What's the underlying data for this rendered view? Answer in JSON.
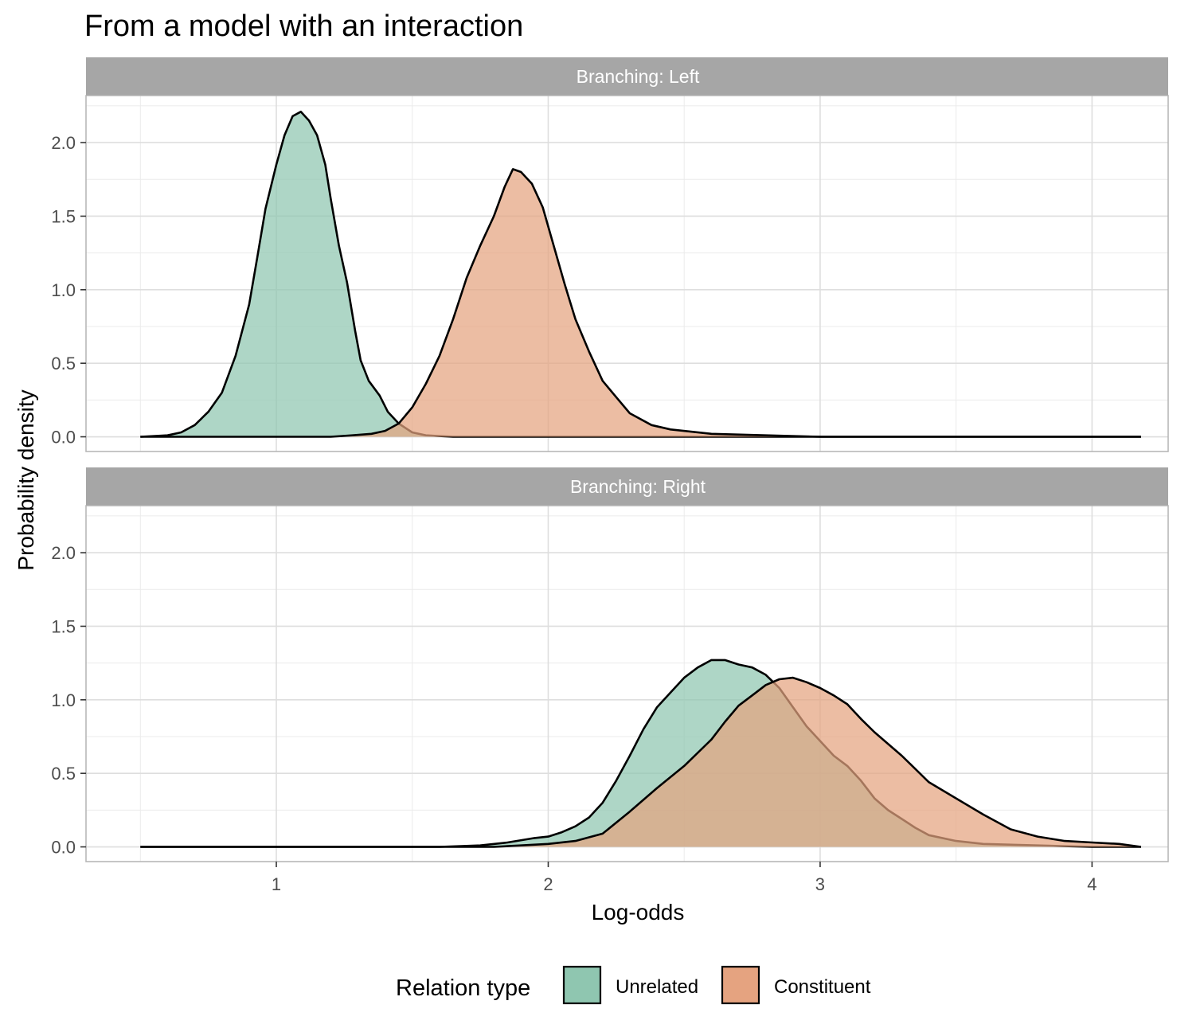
{
  "chart_data": {
    "type": "area",
    "title": "From a model with an interaction",
    "xlabel": "Log-odds",
    "ylabel": "Probability density",
    "xlim": [
      0.3,
      4.28
    ],
    "ylim": [
      -0.1,
      2.32
    ],
    "x_ticks": [
      "1",
      "2",
      "3",
      "4"
    ],
    "y_ticks": [
      "0.0",
      "0.5",
      "1.0",
      "1.5",
      "2.0"
    ],
    "grid": true,
    "legend": {
      "title": "Relation type",
      "position": "bottom",
      "entries": [
        "Unrelated",
        "Constituent"
      ]
    },
    "colors": {
      "Unrelated": "#8fc6b0",
      "Constituent": "#e5a380",
      "outline": "#000000",
      "strip": "#a6a6a6"
    },
    "panels": [
      {
        "strip": "Branching: Left",
        "series": [
          {
            "name": "Unrelated",
            "points": [
              [
                0.5,
                0.0
              ],
              [
                0.6,
                0.01
              ],
              [
                0.65,
                0.03
              ],
              [
                0.7,
                0.08
              ],
              [
                0.75,
                0.17
              ],
              [
                0.8,
                0.3
              ],
              [
                0.85,
                0.55
              ],
              [
                0.9,
                0.9
              ],
              [
                0.93,
                1.22
              ],
              [
                0.96,
                1.55
              ],
              [
                1.0,
                1.85
              ],
              [
                1.03,
                2.05
              ],
              [
                1.06,
                2.18
              ],
              [
                1.09,
                2.21
              ],
              [
                1.12,
                2.15
              ],
              [
                1.15,
                2.05
              ],
              [
                1.18,
                1.85
              ],
              [
                1.2,
                1.62
              ],
              [
                1.23,
                1.3
              ],
              [
                1.26,
                1.05
              ],
              [
                1.29,
                0.72
              ],
              [
                1.31,
                0.52
              ],
              [
                1.34,
                0.38
              ],
              [
                1.38,
                0.28
              ],
              [
                1.41,
                0.17
              ],
              [
                1.45,
                0.09
              ],
              [
                1.5,
                0.03
              ],
              [
                1.55,
                0.01
              ],
              [
                1.65,
                0.0
              ],
              [
                4.18,
                0.0
              ]
            ]
          },
          {
            "name": "Constituent",
            "points": [
              [
                0.5,
                0.0
              ],
              [
                1.2,
                0.0
              ],
              [
                1.28,
                0.01
              ],
              [
                1.35,
                0.02
              ],
              [
                1.4,
                0.04
              ],
              [
                1.45,
                0.09
              ],
              [
                1.5,
                0.2
              ],
              [
                1.55,
                0.36
              ],
              [
                1.6,
                0.55
              ],
              [
                1.65,
                0.8
              ],
              [
                1.7,
                1.08
              ],
              [
                1.75,
                1.3
              ],
              [
                1.8,
                1.5
              ],
              [
                1.84,
                1.7
              ],
              [
                1.87,
                1.82
              ],
              [
                1.9,
                1.8
              ],
              [
                1.94,
                1.72
              ],
              [
                1.98,
                1.56
              ],
              [
                2.02,
                1.3
              ],
              [
                2.06,
                1.04
              ],
              [
                2.1,
                0.8
              ],
              [
                2.15,
                0.58
              ],
              [
                2.2,
                0.38
              ],
              [
                2.25,
                0.27
              ],
              [
                2.3,
                0.16
              ],
              [
                2.38,
                0.08
              ],
              [
                2.45,
                0.05
              ],
              [
                2.6,
                0.02
              ],
              [
                2.8,
                0.01
              ],
              [
                3.0,
                0.0
              ],
              [
                4.18,
                0.0
              ]
            ]
          }
        ]
      },
      {
        "strip": "Branching: Right",
        "series": [
          {
            "name": "Unrelated",
            "points": [
              [
                0.5,
                0.0
              ],
              [
                1.6,
                0.0
              ],
              [
                1.75,
                0.01
              ],
              [
                1.85,
                0.03
              ],
              [
                1.95,
                0.06
              ],
              [
                2.0,
                0.07
              ],
              [
                2.05,
                0.1
              ],
              [
                2.1,
                0.14
              ],
              [
                2.15,
                0.2
              ],
              [
                2.2,
                0.3
              ],
              [
                2.25,
                0.45
              ],
              [
                2.3,
                0.62
              ],
              [
                2.35,
                0.8
              ],
              [
                2.4,
                0.95
              ],
              [
                2.45,
                1.05
              ],
              [
                2.5,
                1.15
              ],
              [
                2.55,
                1.22
              ],
              [
                2.6,
                1.27
              ],
              [
                2.65,
                1.27
              ],
              [
                2.7,
                1.24
              ],
              [
                2.75,
                1.22
              ],
              [
                2.8,
                1.17
              ],
              [
                2.85,
                1.08
              ],
              [
                2.9,
                0.95
              ],
              [
                2.95,
                0.82
              ],
              [
                3.0,
                0.72
              ],
              [
                3.05,
                0.62
              ],
              [
                3.1,
                0.55
              ],
              [
                3.15,
                0.45
              ],
              [
                3.2,
                0.33
              ],
              [
                3.25,
                0.25
              ],
              [
                3.3,
                0.19
              ],
              [
                3.35,
                0.13
              ],
              [
                3.4,
                0.08
              ],
              [
                3.5,
                0.04
              ],
              [
                3.6,
                0.02
              ],
              [
                3.8,
                0.01
              ],
              [
                4.0,
                0.0
              ],
              [
                4.18,
                0.0
              ]
            ]
          },
          {
            "name": "Constituent",
            "points": [
              [
                0.5,
                0.0
              ],
              [
                1.8,
                0.0
              ],
              [
                1.9,
                0.01
              ],
              [
                2.0,
                0.02
              ],
              [
                2.1,
                0.04
              ],
              [
                2.2,
                0.09
              ],
              [
                2.3,
                0.24
              ],
              [
                2.4,
                0.4
              ],
              [
                2.5,
                0.55
              ],
              [
                2.6,
                0.73
              ],
              [
                2.65,
                0.85
              ],
              [
                2.7,
                0.96
              ],
              [
                2.75,
                1.03
              ],
              [
                2.8,
                1.1
              ],
              [
                2.85,
                1.14
              ],
              [
                2.9,
                1.15
              ],
              [
                2.95,
                1.12
              ],
              [
                3.0,
                1.08
              ],
              [
                3.05,
                1.03
              ],
              [
                3.1,
                0.97
              ],
              [
                3.15,
                0.87
              ],
              [
                3.2,
                0.78
              ],
              [
                3.3,
                0.62
              ],
              [
                3.4,
                0.44
              ],
              [
                3.5,
                0.33
              ],
              [
                3.6,
                0.22
              ],
              [
                3.7,
                0.12
              ],
              [
                3.8,
                0.07
              ],
              [
                3.9,
                0.04
              ],
              [
                4.0,
                0.03
              ],
              [
                4.1,
                0.02
              ],
              [
                4.18,
                0.0
              ]
            ]
          }
        ]
      }
    ]
  }
}
